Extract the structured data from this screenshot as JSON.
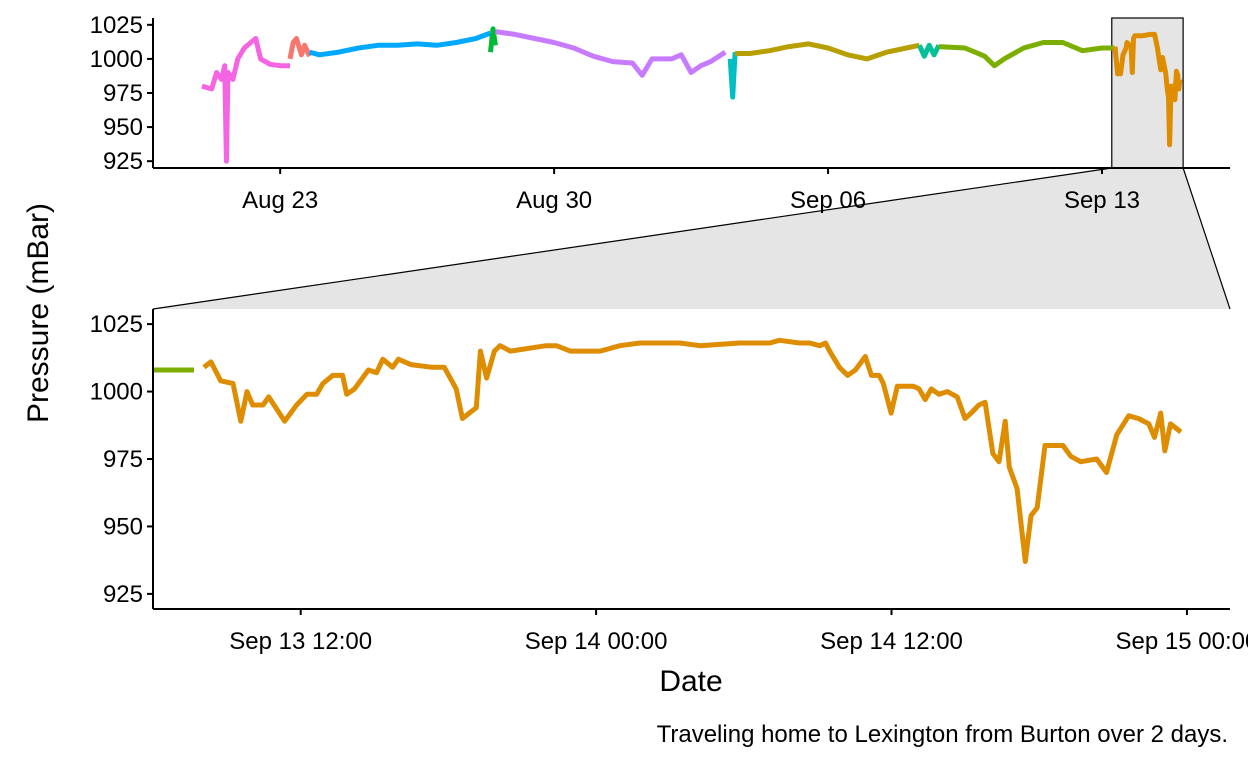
{
  "y_label": "Pressure (mBar)",
  "x_label": "Date",
  "caption": "Traveling home to Lexington from Burton over 2 days.",
  "chart_data": [
    {
      "type": "line",
      "xlim": [
        "08-19 18:00",
        "09-16 06:30"
      ],
      "ylim": [
        920,
        1030
      ],
      "yticks": [
        925,
        950,
        975,
        1000,
        1025
      ],
      "xticks": [
        {
          "value": "08-23 00:00",
          "label": "Aug 23"
        },
        {
          "value": "08-30 00:00",
          "label": "Aug 30"
        },
        {
          "value": "09-06 00:00",
          "label": "Sep 06"
        },
        {
          "value": "09-13 00:00",
          "label": "Sep 13"
        }
      ],
      "series": [
        {
          "color": "#F564E3",
          "x": [
            "08-21 00:00",
            "08-21 06:00",
            "08-21 09:00",
            "08-21 12:00",
            "08-21 14:00",
            "08-21 15:00",
            "08-21 16:00",
            "08-21 19:00",
            "08-21 22:00",
            "08-22 02:00",
            "08-22 06:00",
            "08-22 09:00",
            "08-22 12:00",
            "08-22 18:00",
            "08-23 00:00",
            "08-23 06:00"
          ],
          "values": [
            980,
            978,
            990,
            985,
            995,
            925,
            990,
            985,
            1000,
            1008,
            1012,
            1015,
            1000,
            996,
            995,
            995
          ]
        },
        {
          "color": "#F8766D",
          "x": [
            "08-23 06:00",
            "08-23 08:00",
            "08-23 10:00",
            "08-23 13:00",
            "08-23 15:00",
            "08-23 18:00"
          ],
          "values": [
            1000,
            1012,
            1015,
            1003,
            1010,
            1002
          ]
        },
        {
          "color": "#00A9FF",
          "x": [
            "08-23 18:00",
            "08-24 00:00",
            "08-24 12:00",
            "08-25 00:00",
            "08-25 12:00",
            "08-26 00:00",
            "08-26 12:00",
            "08-27 00:00",
            "08-27 12:00",
            "08-28 00:00",
            "08-28 09:00"
          ],
          "values": [
            1005,
            1003,
            1005,
            1008,
            1010,
            1010,
            1011,
            1010,
            1012,
            1015,
            1019
          ]
        },
        {
          "color": "#00BA38",
          "x": [
            "08-28 09:00",
            "08-28 10:30",
            "08-28 12:00"
          ],
          "values": [
            1005,
            1022,
            1010
          ]
        },
        {
          "color": "#C77CFF",
          "x": [
            "08-28 12:00",
            "08-29 00:00",
            "08-29 12:00",
            "08-30 00:00",
            "08-30 12:00",
            "08-31 00:00",
            "08-31 12:00",
            "09-01 00:00",
            "09-01 06:00",
            "09-01 12:00",
            "09-02 00:00",
            "09-02 06:00",
            "09-02 12:00",
            "09-02 18:00",
            "09-03 00:00",
            "09-03 09:00"
          ],
          "values": [
            1020,
            1018,
            1015,
            1012,
            1008,
            1002,
            998,
            997,
            988,
            1000,
            1000,
            1003,
            990,
            995,
            998,
            1005
          ]
        },
        {
          "color": "#00BFC4",
          "x": [
            "09-03 12:00",
            "09-03 13:30",
            "09-03 15:00"
          ],
          "values": [
            1000,
            972,
            1005
          ]
        },
        {
          "color": "#B79F00",
          "x": [
            "09-03 15:00",
            "09-04 00:00",
            "09-04 12:00",
            "09-05 00:00",
            "09-05 12:00",
            "09-06 00:00",
            "09-06 12:00",
            "09-07 00:00",
            "09-07 12:00",
            "09-08 00:00",
            "09-08 08:00"
          ],
          "values": [
            1004,
            1004,
            1006,
            1009,
            1011,
            1008,
            1003,
            1000,
            1005,
            1008,
            1010
          ]
        },
        {
          "color": "#00C19A",
          "x": [
            "09-08 08:00",
            "09-08 11:00",
            "09-08 14:00",
            "09-08 17:00",
            "09-08 20:00"
          ],
          "values": [
            1010,
            1002,
            1010,
            1003,
            1010
          ]
        },
        {
          "color": "#7CAE00",
          "x": [
            "09-08 20:00",
            "09-09 12:00",
            "09-10 00:00",
            "09-10 06:00",
            "09-10 12:00",
            "09-11 00:00",
            "09-11 12:00",
            "09-12 00:00",
            "09-12 12:00",
            "09-13 00:00",
            "09-13 07:40"
          ],
          "values": [
            1009,
            1008,
            1002,
            995,
            1000,
            1008,
            1012,
            1012,
            1006,
            1008,
            1008
          ]
        },
        {
          "color": "#DE8C00",
          "x": [
            "09-13 08:00",
            "09-13 09:34",
            "09-13 10:03",
            "09-13 11:21",
            "09-13 12:54",
            "09-13 14:45",
            "09-13 15:20",
            "09-13 17:50",
            "09-13 18:34",
            "09-13 19:18",
            "09-13 20:06",
            "09-14 00:58",
            "09-14 05:50",
            "09-14 08:16",
            "09-14 09:53",
            "09-14 11:59",
            "09-14 13:07",
            "09-14 14:59",
            "09-14 16:07",
            "09-14 16:47",
            "09-14 17:26",
            "09-14 17:55",
            "09-14 18:14",
            "09-14 18:58",
            "09-14 20:44",
            "09-14 21:38",
            "09-14 22:27",
            "09-14 23:06",
            "09-14 23:45"
          ],
          "values": [
            1009,
            989,
            995,
            989,
            1003,
            1008,
            1012,
            1009,
            990,
            1015,
            1017,
            1017,
            1018,
            1018,
            1009,
            992,
            1001,
            990,
            977,
            972,
            937,
            957,
            980,
            980,
            970,
            991,
            988,
            978,
            985
          ]
        }
      ]
    },
    {
      "type": "line",
      "xlim": [
        "09-13 06:00",
        "09-15 01:45"
      ],
      "ylim": [
        919.4,
        1030.6
      ],
      "yticks": [
        925,
        950,
        975,
        1000,
        1025
      ],
      "xticks": [
        {
          "value": "09-13 12:00",
          "label": "Sep 13 12:00"
        },
        {
          "value": "09-14 00:00",
          "label": "Sep 14 00:00"
        },
        {
          "value": "09-14 12:00",
          "label": "Sep 14 12:00"
        },
        {
          "value": "09-15 00:00",
          "label": "Sep 15 00:00"
        }
      ],
      "series": [
        {
          "color": "#7CAE00",
          "x": [
            "09-13 06:00",
            "09-13 07:40"
          ],
          "values": [
            1008,
            1008
          ]
        },
        {
          "color": "#DE8C00",
          "x": [
            "09-13 08:04",
            "09-13 08:21",
            "09-13 08:45",
            "09-13 09:15",
            "09-13 09:34",
            "09-13 09:49",
            "09-13 10:03",
            "09-13 10:28",
            "09-13 10:42",
            "09-13 11:21",
            "09-13 11:50",
            "09-13 12:15",
            "09-13 12:39",
            "09-13 12:54",
            "09-13 13:18",
            "09-13 13:42",
            "09-13 13:52",
            "09-13 14:11",
            "09-13 14:45",
            "09-13 15:05",
            "09-13 15:20",
            "09-13 15:44",
            "09-13 15:58",
            "09-13 16:28",
            "09-13 17:21",
            "09-13 17:50",
            "09-13 18:19",
            "09-13 18:34",
            "09-13 19:08",
            "09-13 19:18",
            "09-13 19:33",
            "09-13 19:52",
            "09-13 20:06",
            "09-13 20:31",
            "09-13 21:58",
            "09-13 22:23",
            "09-13 22:57",
            "09-13 23:45",
            "09-14 00:10",
            "09-14 00:58",
            "09-14 01:47",
            "09-14 03:24",
            "09-14 04:13",
            "09-14 05:50",
            "09-14 06:38",
            "09-14 07:03",
            "09-14 07:27",
            "09-14 08:16",
            "09-14 08:40",
            "09-14 09:05",
            "09-14 09:19",
            "09-14 09:29",
            "09-14 09:53",
            "09-14 10:13",
            "09-14 10:32",
            "09-14 10:56",
            "09-14 11:11",
            "09-14 11:30",
            "09-14 11:40",
            "09-14 11:59",
            "09-14 12:14",
            "09-14 12:53",
            "09-14 13:07",
            "09-14 13:22",
            "09-14 13:37",
            "09-14 13:56",
            "09-14 14:16",
            "09-14 14:40",
            "09-14 14:59",
            "09-14 15:14",
            "09-14 15:33",
            "09-14 15:48",
            "09-14 16:07",
            "09-14 16:22",
            "09-14 16:37",
            "09-14 16:47",
            "09-14 17:06",
            "09-14 17:26",
            "09-14 17:40",
            "09-14 17:55",
            "09-14 18:14",
            "09-14 18:58",
            "09-14 19:17",
            "09-14 19:41",
            "09-14 20:20",
            "09-14 20:44",
            "09-14 21:09",
            "09-14 21:38",
            "09-14 22:02",
            "09-14 22:27",
            "09-14 22:41",
            "09-14 22:56",
            "09-14 23:06",
            "09-14 23:20",
            "09-14 23:45"
          ],
          "values": [
            1009,
            1011,
            1004,
            1003,
            989,
            1000,
            995,
            995,
            998,
            989,
            995,
            999,
            999,
            1003,
            1006,
            1006,
            999,
            1001,
            1008,
            1007,
            1012,
            1009,
            1012,
            1010,
            1009,
            1009,
            1001,
            990,
            994,
            1015,
            1005,
            1015,
            1017,
            1015,
            1017,
            1017,
            1015,
            1015,
            1015,
            1017,
            1018,
            1018,
            1017,
            1018,
            1018,
            1018,
            1019,
            1018,
            1018,
            1017,
            1018,
            1015,
            1009,
            1006,
            1008,
            1013,
            1006,
            1006,
            1003,
            992,
            1002,
            1002,
            1001,
            997,
            1001,
            999,
            1000,
            998,
            990,
            992,
            995,
            996,
            977,
            974,
            989,
            972,
            964,
            937,
            954,
            957,
            980,
            980,
            976,
            974,
            975,
            970,
            984,
            991,
            990,
            988,
            983,
            992,
            978,
            988,
            985
          ]
        }
      ]
    }
  ]
}
